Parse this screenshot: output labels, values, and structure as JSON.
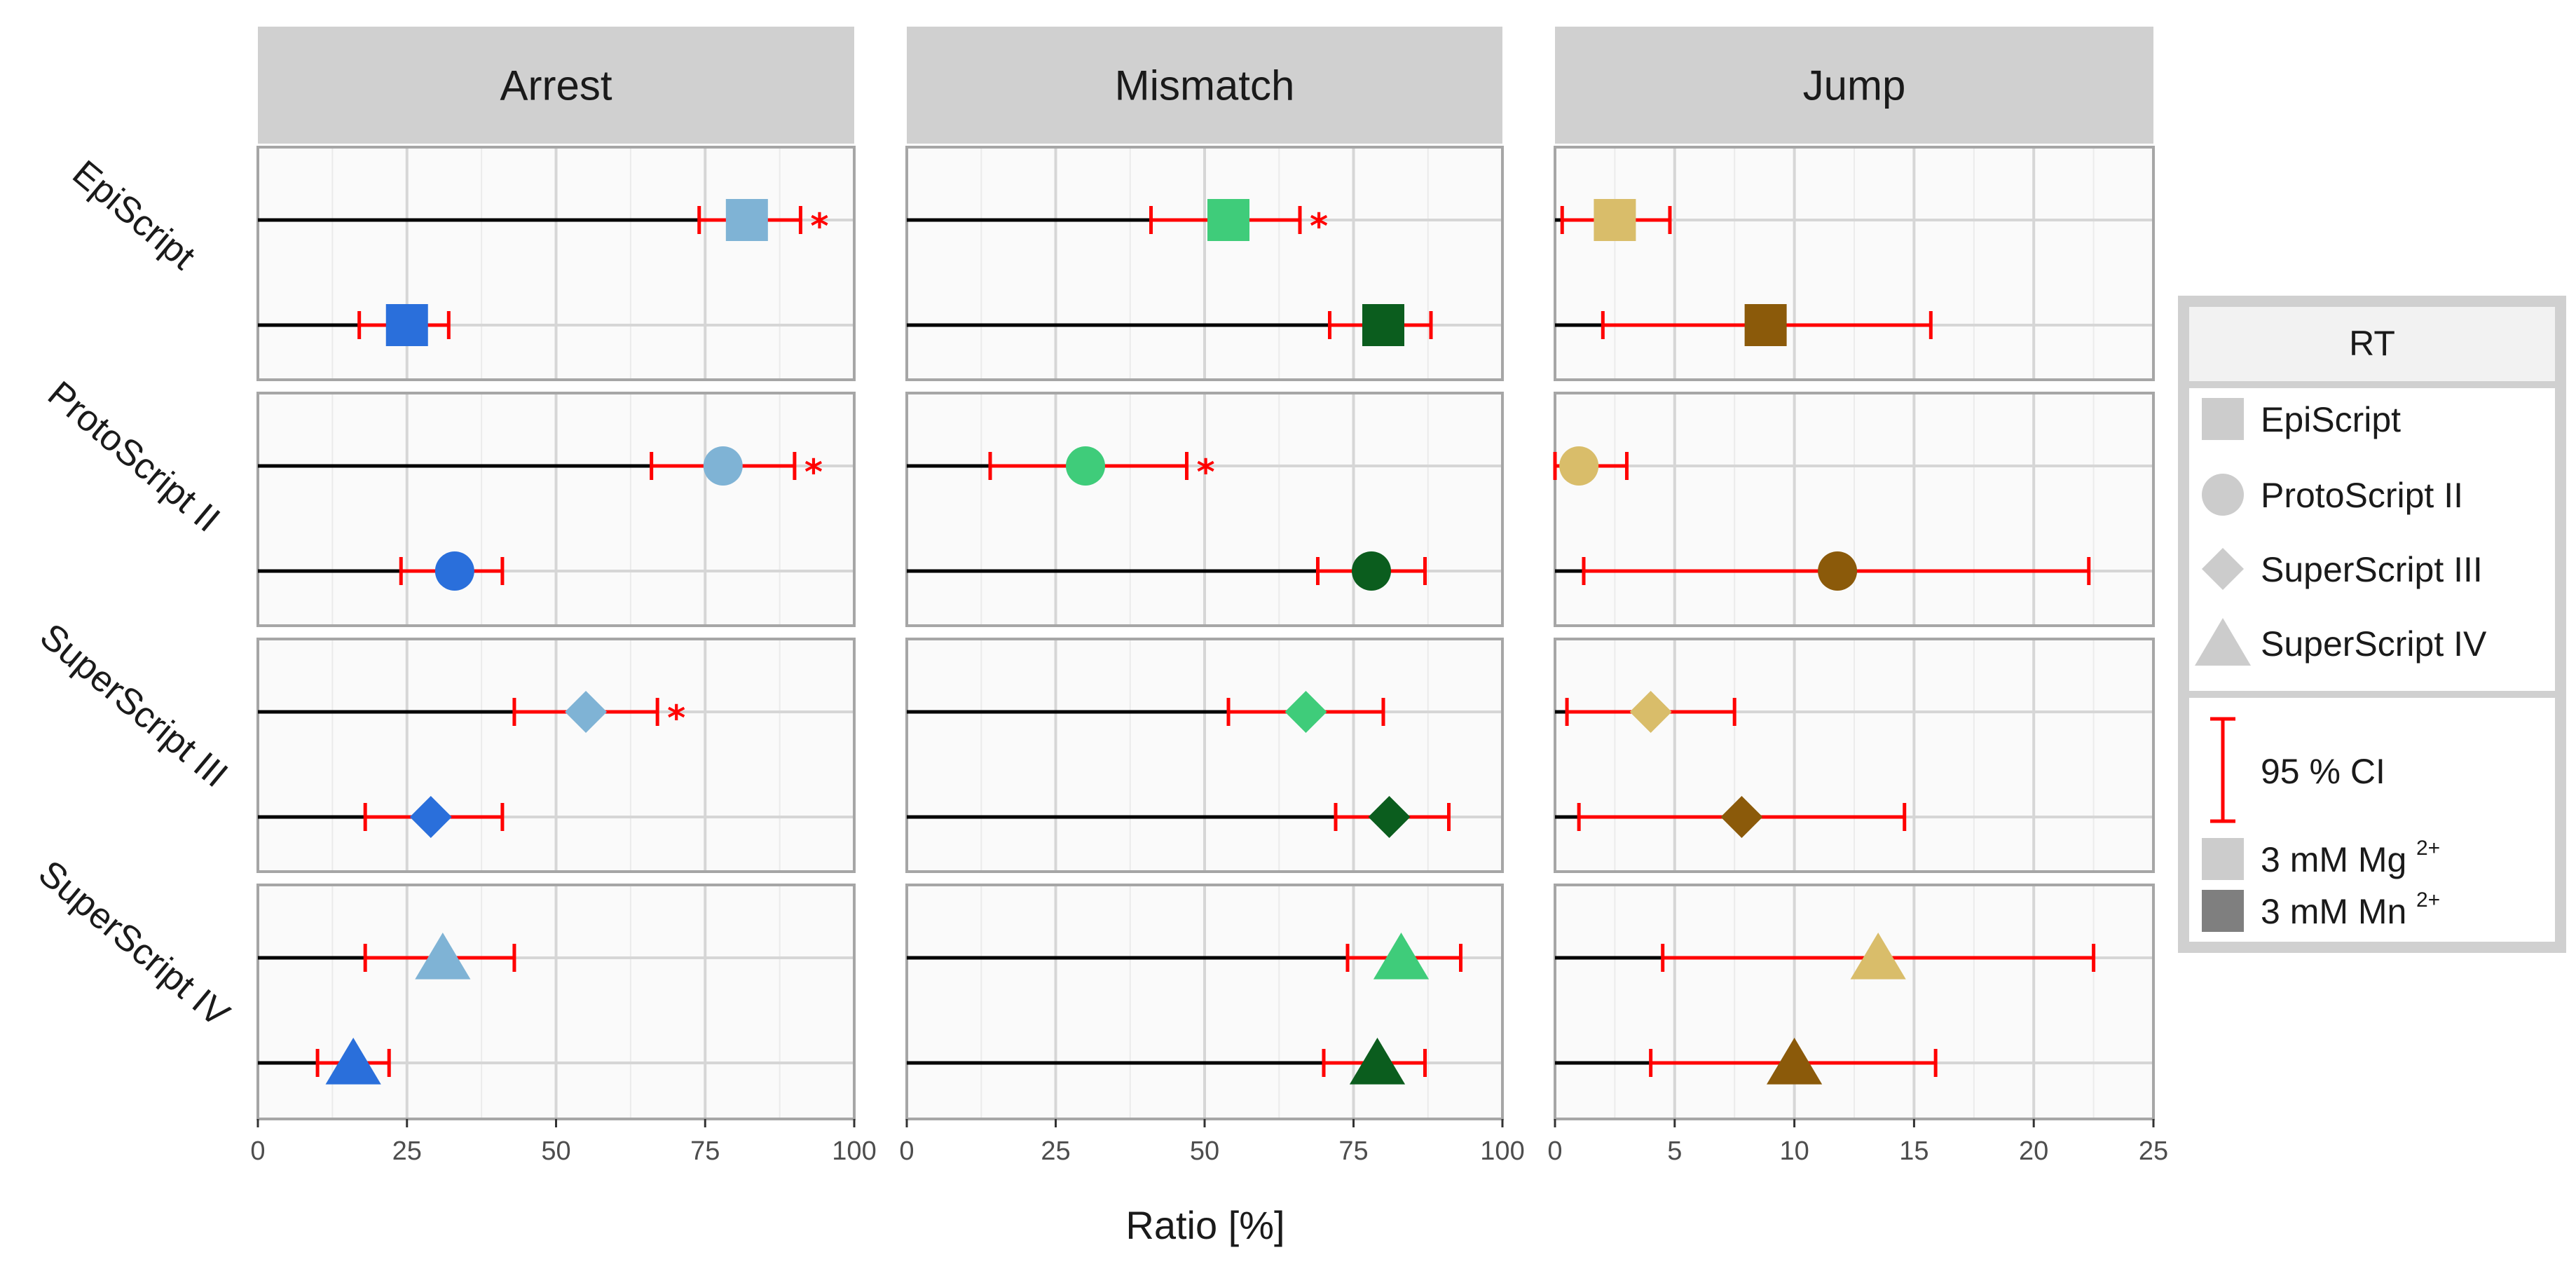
{
  "chart_data": {
    "type": "scatter",
    "x_title": "Ratio [%]",
    "panels": [
      {
        "name": "Arrest",
        "xlim": [
          0,
          100
        ],
        "ticks": [
          0,
          25,
          50,
          75,
          100
        ],
        "light_color": "#7fb3d5",
        "dark_color": "#2a6fdb"
      },
      {
        "name": "Mismatch",
        "xlim": [
          0,
          100
        ],
        "ticks": [
          0,
          25,
          50,
          75,
          100
        ],
        "light_color": "#3fcc7a",
        "dark_color": "#0b5d1e"
      },
      {
        "name": "Jump",
        "xlim": [
          0,
          25
        ],
        "ticks": [
          0,
          5,
          10,
          15,
          20,
          25
        ],
        "light_color": "#d9bd6a",
        "dark_color": "#8b5a0a"
      }
    ],
    "rows": [
      {
        "name": "EpiScript",
        "shape": "square"
      },
      {
        "name": "ProtoScript II",
        "shape": "circle"
      },
      {
        "name": "SuperScript III",
        "shape": "diamond"
      },
      {
        "name": "SuperScript IV",
        "shape": "triangle"
      }
    ],
    "points": [
      {
        "panel": 0,
        "row": 0,
        "cond": "Mg",
        "value": 82,
        "ci": [
          74,
          91
        ],
        "sig": true
      },
      {
        "panel": 0,
        "row": 0,
        "cond": "Mn",
        "value": 25,
        "ci": [
          17,
          32
        ],
        "sig": false
      },
      {
        "panel": 0,
        "row": 1,
        "cond": "Mg",
        "value": 78,
        "ci": [
          66,
          90
        ],
        "sig": true
      },
      {
        "panel": 0,
        "row": 1,
        "cond": "Mn",
        "value": 33,
        "ci": [
          24,
          41
        ],
        "sig": false
      },
      {
        "panel": 0,
        "row": 2,
        "cond": "Mg",
        "value": 55,
        "ci": [
          43,
          67
        ],
        "sig": true
      },
      {
        "panel": 0,
        "row": 2,
        "cond": "Mn",
        "value": 29,
        "ci": [
          18,
          41
        ],
        "sig": false
      },
      {
        "panel": 0,
        "row": 3,
        "cond": "Mg",
        "value": 31,
        "ci": [
          18,
          43
        ],
        "sig": false
      },
      {
        "panel": 0,
        "row": 3,
        "cond": "Mn",
        "value": 16,
        "ci": [
          10,
          22
        ],
        "sig": false
      },
      {
        "panel": 1,
        "row": 0,
        "cond": "Mg",
        "value": 54,
        "ci": [
          41,
          66
        ],
        "sig": true
      },
      {
        "panel": 1,
        "row": 0,
        "cond": "Mn",
        "value": 80,
        "ci": [
          71,
          88
        ],
        "sig": false
      },
      {
        "panel": 1,
        "row": 1,
        "cond": "Mg",
        "value": 30,
        "ci": [
          14,
          47
        ],
        "sig": true
      },
      {
        "panel": 1,
        "row": 1,
        "cond": "Mn",
        "value": 78,
        "ci": [
          69,
          87
        ],
        "sig": false
      },
      {
        "panel": 1,
        "row": 2,
        "cond": "Mg",
        "value": 67,
        "ci": [
          54,
          80
        ],
        "sig": false
      },
      {
        "panel": 1,
        "row": 2,
        "cond": "Mn",
        "value": 81,
        "ci": [
          72,
          91
        ],
        "sig": false
      },
      {
        "panel": 1,
        "row": 3,
        "cond": "Mg",
        "value": 83,
        "ci": [
          74,
          93
        ],
        "sig": false
      },
      {
        "panel": 1,
        "row": 3,
        "cond": "Mn",
        "value": 79,
        "ci": [
          70,
          87
        ],
        "sig": false
      },
      {
        "panel": 2,
        "row": 0,
        "cond": "Mg",
        "value": 2.5,
        "ci": [
          0.3,
          4.8
        ],
        "sig": false
      },
      {
        "panel": 2,
        "row": 0,
        "cond": "Mn",
        "value": 8.8,
        "ci": [
          2.0,
          15.7
        ],
        "sig": false
      },
      {
        "panel": 2,
        "row": 1,
        "cond": "Mg",
        "value": 1.0,
        "ci": [
          0,
          3.0
        ],
        "sig": false
      },
      {
        "panel": 2,
        "row": 1,
        "cond": "Mn",
        "value": 11.8,
        "ci": [
          1.2,
          22.3
        ],
        "sig": false
      },
      {
        "panel": 2,
        "row": 2,
        "cond": "Mg",
        "value": 4.0,
        "ci": [
          0.5,
          7.5
        ],
        "sig": false
      },
      {
        "panel": 2,
        "row": 2,
        "cond": "Mn",
        "value": 7.8,
        "ci": [
          1.0,
          14.6
        ],
        "sig": false
      },
      {
        "panel": 2,
        "row": 3,
        "cond": "Mg",
        "value": 13.5,
        "ci": [
          4.5,
          22.5
        ],
        "sig": false
      },
      {
        "panel": 2,
        "row": 3,
        "cond": "Mn",
        "value": 10.0,
        "ci": [
          4.0,
          15.9
        ],
        "sig": false
      }
    ],
    "legend": {
      "title": "RT",
      "shape_items": [
        "EpiScript",
        "ProtoScript II",
        "SuperScript III",
        "SuperScript IV"
      ],
      "ci_label": "95 % CI",
      "mg_label": "3 mM Mg",
      "mg_sup": "2+",
      "mn_label": "3 mM Mn",
      "mn_sup": "2+"
    },
    "sig_symbol": "*",
    "ci_color": "#ff0000",
    "line_color": "#000000"
  }
}
